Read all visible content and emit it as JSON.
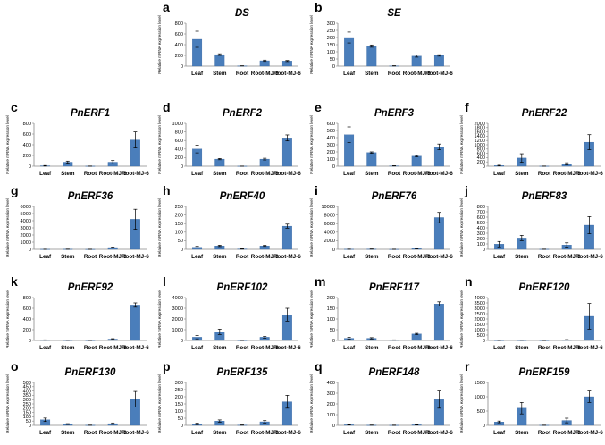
{
  "ylabel": "Relative mRNA expression level",
  "categories": [
    "Leaf",
    "Stem",
    "Root",
    "Root-MJ-3",
    "Root-MJ-6"
  ],
  "colors": {
    "bar": "#4a7ebb",
    "bar_edge": "#2f5f9a",
    "error_bar": "#000000",
    "axis": "#888888",
    "text": "#000000"
  },
  "chart_data": [
    {
      "type": "bar",
      "panel": "a",
      "title": "DS",
      "title_italic": true,
      "ylim": [
        0,
        800
      ],
      "yticks": [
        0,
        200,
        400,
        600,
        800
      ],
      "values": [
        500,
        215,
        5,
        100,
        95
      ],
      "errors": [
        150,
        15,
        2,
        12,
        10
      ]
    },
    {
      "type": "bar",
      "panel": "b",
      "title": "SE",
      "title_italic": true,
      "ylim": [
        0,
        300
      ],
      "yticks": [
        0,
        50,
        100,
        150,
        200,
        250,
        300
      ],
      "values": [
        200,
        140,
        2,
        70,
        75
      ],
      "errors": [
        38,
        8,
        1,
        7,
        5
      ]
    },
    {
      "type": "bar",
      "panel": "c",
      "title": "PnERF1",
      "ylim": [
        0,
        800
      ],
      "yticks": [
        0,
        200,
        400,
        600,
        800
      ],
      "values": [
        8,
        75,
        2,
        75,
        490
      ],
      "errors": [
        5,
        20,
        1,
        30,
        150
      ]
    },
    {
      "type": "bar",
      "panel": "d",
      "title": "PnERF2",
      "ylim": [
        0,
        1000
      ],
      "yticks": [
        0,
        200,
        400,
        600,
        800,
        1000
      ],
      "values": [
        400,
        165,
        2,
        165,
        660
      ],
      "errors": [
        90,
        15,
        1,
        20,
        70
      ]
    },
    {
      "type": "bar",
      "panel": "e",
      "title": "PnERF3",
      "ylim": [
        0,
        600
      ],
      "yticks": [
        0,
        100,
        200,
        300,
        400,
        500,
        600
      ],
      "values": [
        440,
        190,
        5,
        140,
        270
      ],
      "errors": [
        110,
        10,
        2,
        10,
        40
      ]
    },
    {
      "type": "bar",
      "panel": "f",
      "title": "PnERF22",
      "ylim": [
        0,
        2000
      ],
      "yticks": [
        0,
        200,
        400,
        600,
        800,
        1000,
        1200,
        1400,
        1600,
        1800,
        2000
      ],
      "values": [
        30,
        380,
        5,
        110,
        1120
      ],
      "errors": [
        15,
        200,
        2,
        50,
        350
      ]
    },
    {
      "type": "bar",
      "panel": "g",
      "title": "PnERF36",
      "ylim": [
        0,
        6000
      ],
      "yticks": [
        0,
        1000,
        2000,
        3000,
        4000,
        5000,
        6000
      ],
      "values": [
        10,
        20,
        5,
        250,
        4200
      ],
      "errors": [
        5,
        10,
        2,
        80,
        1400
      ]
    },
    {
      "type": "bar",
      "panel": "h",
      "title": "PnERF40",
      "ylim": [
        0,
        250
      ],
      "yticks": [
        0,
        50,
        100,
        150,
        200,
        250
      ],
      "values": [
        12,
        20,
        2,
        20,
        135
      ],
      "errors": [
        5,
        4,
        1,
        3,
        12
      ]
    },
    {
      "type": "bar",
      "panel": "i",
      "title": "PnERF76",
      "ylim": [
        0,
        10000
      ],
      "yticks": [
        0,
        2000,
        4000,
        6000,
        8000,
        10000
      ],
      "values": [
        30,
        60,
        10,
        150,
        7400
      ],
      "errors": [
        20,
        30,
        5,
        60,
        1200
      ]
    },
    {
      "type": "bar",
      "panel": "j",
      "title": "PnERF83",
      "ylim": [
        0,
        800
      ],
      "yticks": [
        0,
        100,
        200,
        300,
        400,
        500,
        600,
        700,
        800
      ],
      "values": [
        95,
        210,
        2,
        80,
        450
      ],
      "errors": [
        50,
        50,
        1,
        40,
        160
      ]
    },
    {
      "type": "bar",
      "panel": "k",
      "title": "PnERF92",
      "ylim": [
        0,
        800
      ],
      "yticks": [
        0,
        200,
        400,
        600,
        800
      ],
      "values": [
        8,
        5,
        2,
        25,
        660
      ],
      "errors": [
        4,
        3,
        1,
        8,
        40
      ]
    },
    {
      "type": "bar",
      "panel": "l",
      "title": "PnERF102",
      "ylim": [
        0,
        4000
      ],
      "yticks": [
        0,
        1000,
        2000,
        3000,
        4000
      ],
      "values": [
        300,
        800,
        5,
        300,
        2400
      ],
      "errors": [
        150,
        250,
        2,
        80,
        600
      ]
    },
    {
      "type": "bar",
      "panel": "m",
      "title": "PnERF117",
      "ylim": [
        0,
        200
      ],
      "yticks": [
        0,
        50,
        100,
        150,
        200
      ],
      "values": [
        10,
        10,
        2,
        30,
        170
      ],
      "errors": [
        4,
        3,
        1,
        3,
        10
      ]
    },
    {
      "type": "bar",
      "panel": "n",
      "title": "PnERF120",
      "ylim": [
        0,
        4000
      ],
      "yticks": [
        0,
        500,
        1000,
        1500,
        2000,
        2500,
        3000,
        3500,
        4000
      ],
      "values": [
        10,
        20,
        5,
        60,
        2250
      ],
      "errors": [
        5,
        10,
        2,
        20,
        1200
      ]
    },
    {
      "type": "bar",
      "panel": "o",
      "title": "PnERF130",
      "ylim": [
        0,
        500
      ],
      "yticks": [
        0,
        50,
        100,
        150,
        200,
        250,
        300,
        350,
        400,
        450,
        500
      ],
      "values": [
        65,
        15,
        2,
        20,
        305
      ],
      "errors": [
        20,
        5,
        1,
        8,
        90
      ]
    },
    {
      "type": "bar",
      "panel": "p",
      "title": "PnERF135",
      "ylim": [
        0,
        300
      ],
      "yticks": [
        0,
        50,
        100,
        150,
        200,
        250,
        300
      ],
      "values": [
        10,
        30,
        2,
        25,
        165
      ],
      "errors": [
        5,
        8,
        1,
        8,
        45
      ]
    },
    {
      "type": "bar",
      "panel": "q",
      "title": "PnERF148",
      "ylim": [
        0,
        400
      ],
      "yticks": [
        0,
        100,
        200,
        300,
        400
      ],
      "values": [
        5,
        2,
        1,
        5,
        240
      ],
      "errors": [
        2,
        1,
        1,
        2,
        80
      ]
    },
    {
      "type": "bar",
      "panel": "r",
      "title": "PnERF159",
      "ylim": [
        0,
        1500
      ],
      "yticks": [
        0,
        500,
        1000,
        1500
      ],
      "values": [
        120,
        600,
        5,
        170,
        1000
      ],
      "errors": [
        30,
        200,
        2,
        80,
        200
      ]
    }
  ]
}
